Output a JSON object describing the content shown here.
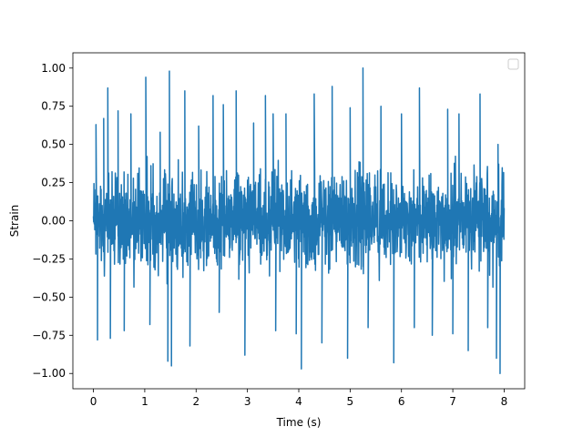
{
  "chart_data": {
    "type": "line",
    "title": "",
    "xlabel": "Time (s)",
    "ylabel": "Strain",
    "xlim": [
      -0.4,
      8.4
    ],
    "ylim": [
      -1.1,
      1.1
    ],
    "x_ticks": [
      0,
      1,
      2,
      3,
      4,
      5,
      6,
      7,
      8
    ],
    "x_tick_labels": [
      "0",
      "1",
      "2",
      "3",
      "4",
      "5",
      "6",
      "7",
      "8"
    ],
    "y_ticks": [
      -1.0,
      -0.75,
      -0.5,
      -0.25,
      0.0,
      0.25,
      0.5,
      0.75,
      1.0
    ],
    "y_tick_labels": [
      "−1.00",
      "−0.75",
      "−0.50",
      "−0.25",
      "0.00",
      "0.25",
      "0.50",
      "0.75",
      "1.00"
    ],
    "grid": false,
    "legend": {
      "placement": "top-right",
      "entries": []
    },
    "series": [
      {
        "color": "#1f77b4",
        "x_range": [
          0,
          8
        ],
        "description_values": {
          "typical_amplitude": 0.45,
          "peak_max": 1.0,
          "peak_min": -1.0
        },
        "peaks": [
          {
            "x": 0.05,
            "y": 0.63
          },
          {
            "x": 0.08,
            "y": -0.78
          },
          {
            "x": 0.2,
            "y": 0.67
          },
          {
            "x": 0.28,
            "y": 0.87
          },
          {
            "x": 0.33,
            "y": -0.77
          },
          {
            "x": 0.48,
            "y": 0.72
          },
          {
            "x": 0.6,
            "y": -0.72
          },
          {
            "x": 0.73,
            "y": 0.7
          },
          {
            "x": 1.02,
            "y": 0.94
          },
          {
            "x": 1.1,
            "y": -0.68
          },
          {
            "x": 1.3,
            "y": 0.58
          },
          {
            "x": 1.45,
            "y": -0.92
          },
          {
            "x": 1.48,
            "y": 0.98
          },
          {
            "x": 1.52,
            "y": -0.95
          },
          {
            "x": 1.78,
            "y": 0.85
          },
          {
            "x": 1.88,
            "y": -0.82
          },
          {
            "x": 2.05,
            "y": 0.62
          },
          {
            "x": 2.33,
            "y": 0.82
          },
          {
            "x": 2.45,
            "y": -0.6
          },
          {
            "x": 2.53,
            "y": 0.76
          },
          {
            "x": 2.78,
            "y": 0.85
          },
          {
            "x": 2.95,
            "y": -0.88
          },
          {
            "x": 3.12,
            "y": 0.64
          },
          {
            "x": 3.35,
            "y": 0.82
          },
          {
            "x": 3.5,
            "y": 0.7
          },
          {
            "x": 3.55,
            "y": -0.72
          },
          {
            "x": 3.75,
            "y": 0.7
          },
          {
            "x": 3.95,
            "y": -0.74
          },
          {
            "x": 4.05,
            "y": -0.97
          },
          {
            "x": 4.3,
            "y": 0.83
          },
          {
            "x": 4.45,
            "y": -0.8
          },
          {
            "x": 4.65,
            "y": 0.88
          },
          {
            "x": 4.95,
            "y": -0.9
          },
          {
            "x": 5.0,
            "y": 0.74
          },
          {
            "x": 5.25,
            "y": 1.0
          },
          {
            "x": 5.35,
            "y": -0.7
          },
          {
            "x": 5.6,
            "y": 0.75
          },
          {
            "x": 5.85,
            "y": -0.93
          },
          {
            "x": 6.0,
            "y": 0.7
          },
          {
            "x": 6.25,
            "y": -0.7
          },
          {
            "x": 6.35,
            "y": 0.87
          },
          {
            "x": 6.6,
            "y": -0.75
          },
          {
            "x": 6.9,
            "y": 0.73
          },
          {
            "x": 7.0,
            "y": -0.74
          },
          {
            "x": 7.12,
            "y": 0.7
          },
          {
            "x": 7.3,
            "y": -0.85
          },
          {
            "x": 7.53,
            "y": 0.83
          },
          {
            "x": 7.68,
            "y": -0.7
          },
          {
            "x": 7.85,
            "y": -0.9
          },
          {
            "x": 7.92,
            "y": -1.0
          },
          {
            "x": 7.88,
            "y": 0.5
          }
        ]
      }
    ]
  }
}
